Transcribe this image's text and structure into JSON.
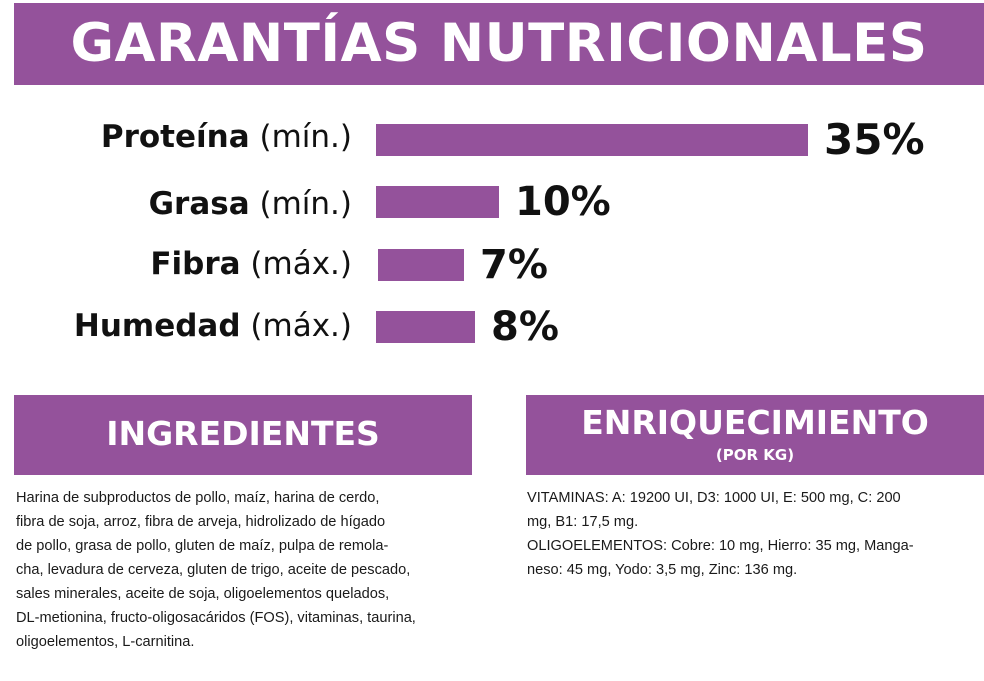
{
  "title": "GARANTÍAS NUTRICIONALES",
  "nutrients": [
    {
      "name": "Proteína",
      "qualifier": "(mín.)",
      "value": 35,
      "label": "35%"
    },
    {
      "name": "Grasa",
      "qualifier": "(mín.)",
      "value": 10,
      "label": "10%"
    },
    {
      "name": "Fibra",
      "qualifier": "(máx.)",
      "value": 7,
      "label": "7%"
    },
    {
      "name": "Humedad",
      "qualifier": "(máx.)",
      "value": 8,
      "label": "8%"
    }
  ],
  "ingredients": {
    "heading": "INGREDIENTES",
    "lines": [
      "Harina de subproductos de pollo, maíz, harina  de  cerdo,",
      "fibra de soja, arroz, fibra de arveja, hidrolizado de hígado",
      "de pollo, grasa de pollo, gluten de maíz, pulpa de remola-",
      "cha, levadura de cerveza, gluten de trigo, aceite de pescado,",
      "sales minerales, aceite de soja, oligoelementos quelados,",
      "DL-metionina, fructo-oligosacáridos (FOS), vitaminas, taurina,",
      "oligoelementos, L-carnitina."
    ]
  },
  "enrichment": {
    "heading": "ENRIQUECIMIENTO",
    "subheading": "(POR KG)",
    "lines": [
      "VITAMINAS: A: 19200 UI, D3: 1000 UI, E: 500 mg, C: 200",
      "mg, B1: 17,5 mg.",
      "OLIGOELEMENTOS: Cobre: 10 mg, Hierro: 35 mg, Manga-",
      "neso: 45 mg, Yodo: 3,5 mg, Zinc: 136 mg."
    ]
  },
  "colors": {
    "accent": "#94529b",
    "text": "#111111"
  }
}
